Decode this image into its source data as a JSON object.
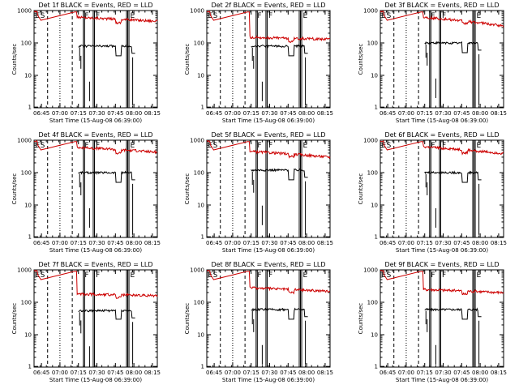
{
  "chart_data": [
    {
      "type": "line",
      "title": "Det 1f BLACK = Events, RED = LLD",
      "xlabel": "Start Time (15-Aug-08 06:39:00)",
      "ylabel": "Counts/sec",
      "yscale": "log",
      "ylim": [
        1,
        1000
      ],
      "xlim": [
        "06:39",
        "08:19"
      ],
      "xticks": [
        "06:45",
        "07:00",
        "07:15",
        "07:30",
        "07:45",
        "08:00",
        "08:15"
      ],
      "yticks": [
        "1",
        "10",
        "100",
        "1000"
      ],
      "grid": false,
      "markers": [
        "E",
        "S",
        "F",
        "F",
        "E"
      ],
      "series": [
        {
          "color": "#000000",
          "level": 80,
          "saa_dip": 40
        },
        {
          "color": "#cc0000",
          "level": 620,
          "end": 470,
          "saa_dip": 420
        }
      ]
    },
    {
      "type": "line",
      "title": "Det 2f BLACK = Events, RED = LLD",
      "xlabel": "Start Time (15-Aug-08 06:39:00)",
      "ylabel": "Counts/sec",
      "yscale": "log",
      "ylim": [
        1,
        1000
      ],
      "xlim": [
        "06:39",
        "08:19"
      ],
      "xticks": [
        "06:45",
        "07:00",
        "07:15",
        "07:30",
        "07:45",
        "08:00",
        "08:15"
      ],
      "yticks": [
        "1",
        "10",
        "100",
        "1000"
      ],
      "grid": false,
      "markers": [
        "E",
        "S",
        "F",
        "F",
        "E"
      ],
      "series": [
        {
          "color": "#000000",
          "level": 80,
          "saa_dip": 40
        },
        {
          "color": "#cc0000",
          "level": 150,
          "end": 130,
          "saa_dip": 110
        }
      ]
    },
    {
      "type": "line",
      "title": "Det 3f BLACK = Events, RED = LLD",
      "xlabel": "Start Time (15-Aug-08 06:39:00)",
      "ylabel": "Counts/sec",
      "yscale": "log",
      "ylim": [
        1,
        1000
      ],
      "xlim": [
        "06:39",
        "08:19"
      ],
      "xticks": [
        "06:45",
        "07:00",
        "07:15",
        "07:30",
        "07:45",
        "08:00",
        "08:15"
      ],
      "yticks": [
        "1",
        "10",
        "100",
        "1000"
      ],
      "grid": false,
      "markers": [
        "E",
        "S",
        "F",
        "F",
        "E"
      ],
      "series": [
        {
          "color": "#000000",
          "level": 100,
          "saa_dip": 50
        },
        {
          "color": "#cc0000",
          "level": 620,
          "end": 330,
          "saa_dip": 400
        }
      ]
    },
    {
      "type": "line",
      "title": "Det 4f BLACK = Events, RED = LLD",
      "xlabel": "Start Time (15-Aug-08 06:39:00)",
      "ylabel": "Counts/sec",
      "yscale": "log",
      "ylim": [
        1,
        1000
      ],
      "xlim": [
        "06:39",
        "08:19"
      ],
      "xticks": [
        "06:45",
        "07:00",
        "07:15",
        "07:30",
        "07:45",
        "08:00",
        "08:15"
      ],
      "yticks": [
        "1",
        "10",
        "100",
        "1000"
      ],
      "grid": false,
      "markers": [
        "E",
        "S",
        "F",
        "F",
        "E"
      ],
      "series": [
        {
          "color": "#000000",
          "level": 100,
          "saa_dip": 50
        },
        {
          "color": "#cc0000",
          "level": 600,
          "end": 430,
          "saa_dip": 400
        }
      ]
    },
    {
      "type": "line",
      "title": "Det 5f BLACK = Events, RED = LLD",
      "xlabel": "Start Time (15-Aug-08 06:39:00)",
      "ylabel": "Counts/sec",
      "yscale": "log",
      "ylim": [
        1,
        1000
      ],
      "xlim": [
        "06:39",
        "08:19"
      ],
      "xticks": [
        "06:45",
        "07:00",
        "07:15",
        "07:30",
        "07:45",
        "08:00",
        "08:15"
      ],
      "yticks": [
        "1",
        "10",
        "100",
        "1000"
      ],
      "grid": false,
      "markers": [
        "E",
        "S",
        "F",
        "F",
        "E"
      ],
      "series": [
        {
          "color": "#000000",
          "level": 120,
          "saa_dip": 60
        },
        {
          "color": "#cc0000",
          "level": 450,
          "end": 300,
          "saa_dip": 320
        }
      ]
    },
    {
      "type": "line",
      "title": "Det 6f BLACK = Events, RED = LLD",
      "xlabel": "Start Time (15-Aug-08 06:39:00)",
      "ylabel": "Counts/sec",
      "yscale": "log",
      "ylim": [
        1,
        1000
      ],
      "xlim": [
        "06:39",
        "08:19"
      ],
      "xticks": [
        "06:45",
        "07:00",
        "07:15",
        "07:30",
        "07:45",
        "08:00",
        "08:15"
      ],
      "yticks": [
        "1",
        "10",
        "100",
        "1000"
      ],
      "grid": false,
      "markers": [
        "E",
        "S",
        "F",
        "F",
        "E"
      ],
      "series": [
        {
          "color": "#000000",
          "level": 100,
          "saa_dip": 50
        },
        {
          "color": "#cc0000",
          "level": 620,
          "end": 390,
          "saa_dip": 400
        }
      ]
    },
    {
      "type": "line",
      "title": "Det 7f BLACK = Events, RED = LLD",
      "xlabel": "Start Time (15-Aug-08 06:39:00)",
      "ylabel": "Counts/sec",
      "yscale": "log",
      "ylim": [
        1,
        1000
      ],
      "xlim": [
        "06:39",
        "08:19"
      ],
      "xticks": [
        "06:45",
        "07:00",
        "07:15",
        "07:30",
        "07:45",
        "08:00",
        "08:15"
      ],
      "yticks": [
        "1",
        "10",
        "100",
        "1000"
      ],
      "grid": false,
      "markers": [
        "E",
        "S",
        "F",
        "F",
        "E"
      ],
      "series": [
        {
          "color": "#000000",
          "level": 55,
          "saa_dip": 30
        },
        {
          "color": "#cc0000",
          "level": 180,
          "end": 160,
          "saa_dip": 140
        }
      ]
    },
    {
      "type": "line",
      "title": "Det 8f BLACK = Events, RED = LLD",
      "xlabel": "Start Time (15-Aug-08 06:39:00)",
      "ylabel": "Counts/sec",
      "yscale": "log",
      "ylim": [
        1,
        1000
      ],
      "xlim": [
        "06:39",
        "08:19"
      ],
      "xticks": [
        "06:45",
        "07:00",
        "07:15",
        "07:30",
        "07:45",
        "08:00",
        "08:15"
      ],
      "yticks": [
        "1",
        "10",
        "100",
        "1000"
      ],
      "grid": false,
      "markers": [
        "E",
        "S",
        "F",
        "F",
        "E"
      ],
      "series": [
        {
          "color": "#000000",
          "level": 60,
          "saa_dip": 30
        },
        {
          "color": "#cc0000",
          "level": 280,
          "end": 220,
          "saa_dip": 200
        }
      ]
    },
    {
      "type": "line",
      "title": "Det 9f BLACK = Events, RED = LLD",
      "xlabel": "Start Time (15-Aug-08 06:39:00)",
      "ylabel": "Counts/sec",
      "yscale": "log",
      "ylim": [
        1,
        1000
      ],
      "xlim": [
        "06:39",
        "08:19"
      ],
      "xticks": [
        "06:45",
        "07:00",
        "07:15",
        "07:30",
        "07:45",
        "08:00",
        "08:15"
      ],
      "yticks": [
        "1",
        "10",
        "100",
        "1000"
      ],
      "grid": false,
      "markers": [
        "E",
        "S",
        "F",
        "F",
        "E"
      ],
      "series": [
        {
          "color": "#000000",
          "level": 60,
          "saa_dip": 30
        },
        {
          "color": "#cc0000",
          "level": 250,
          "end": 200,
          "saa_dip": 180
        }
      ]
    }
  ]
}
